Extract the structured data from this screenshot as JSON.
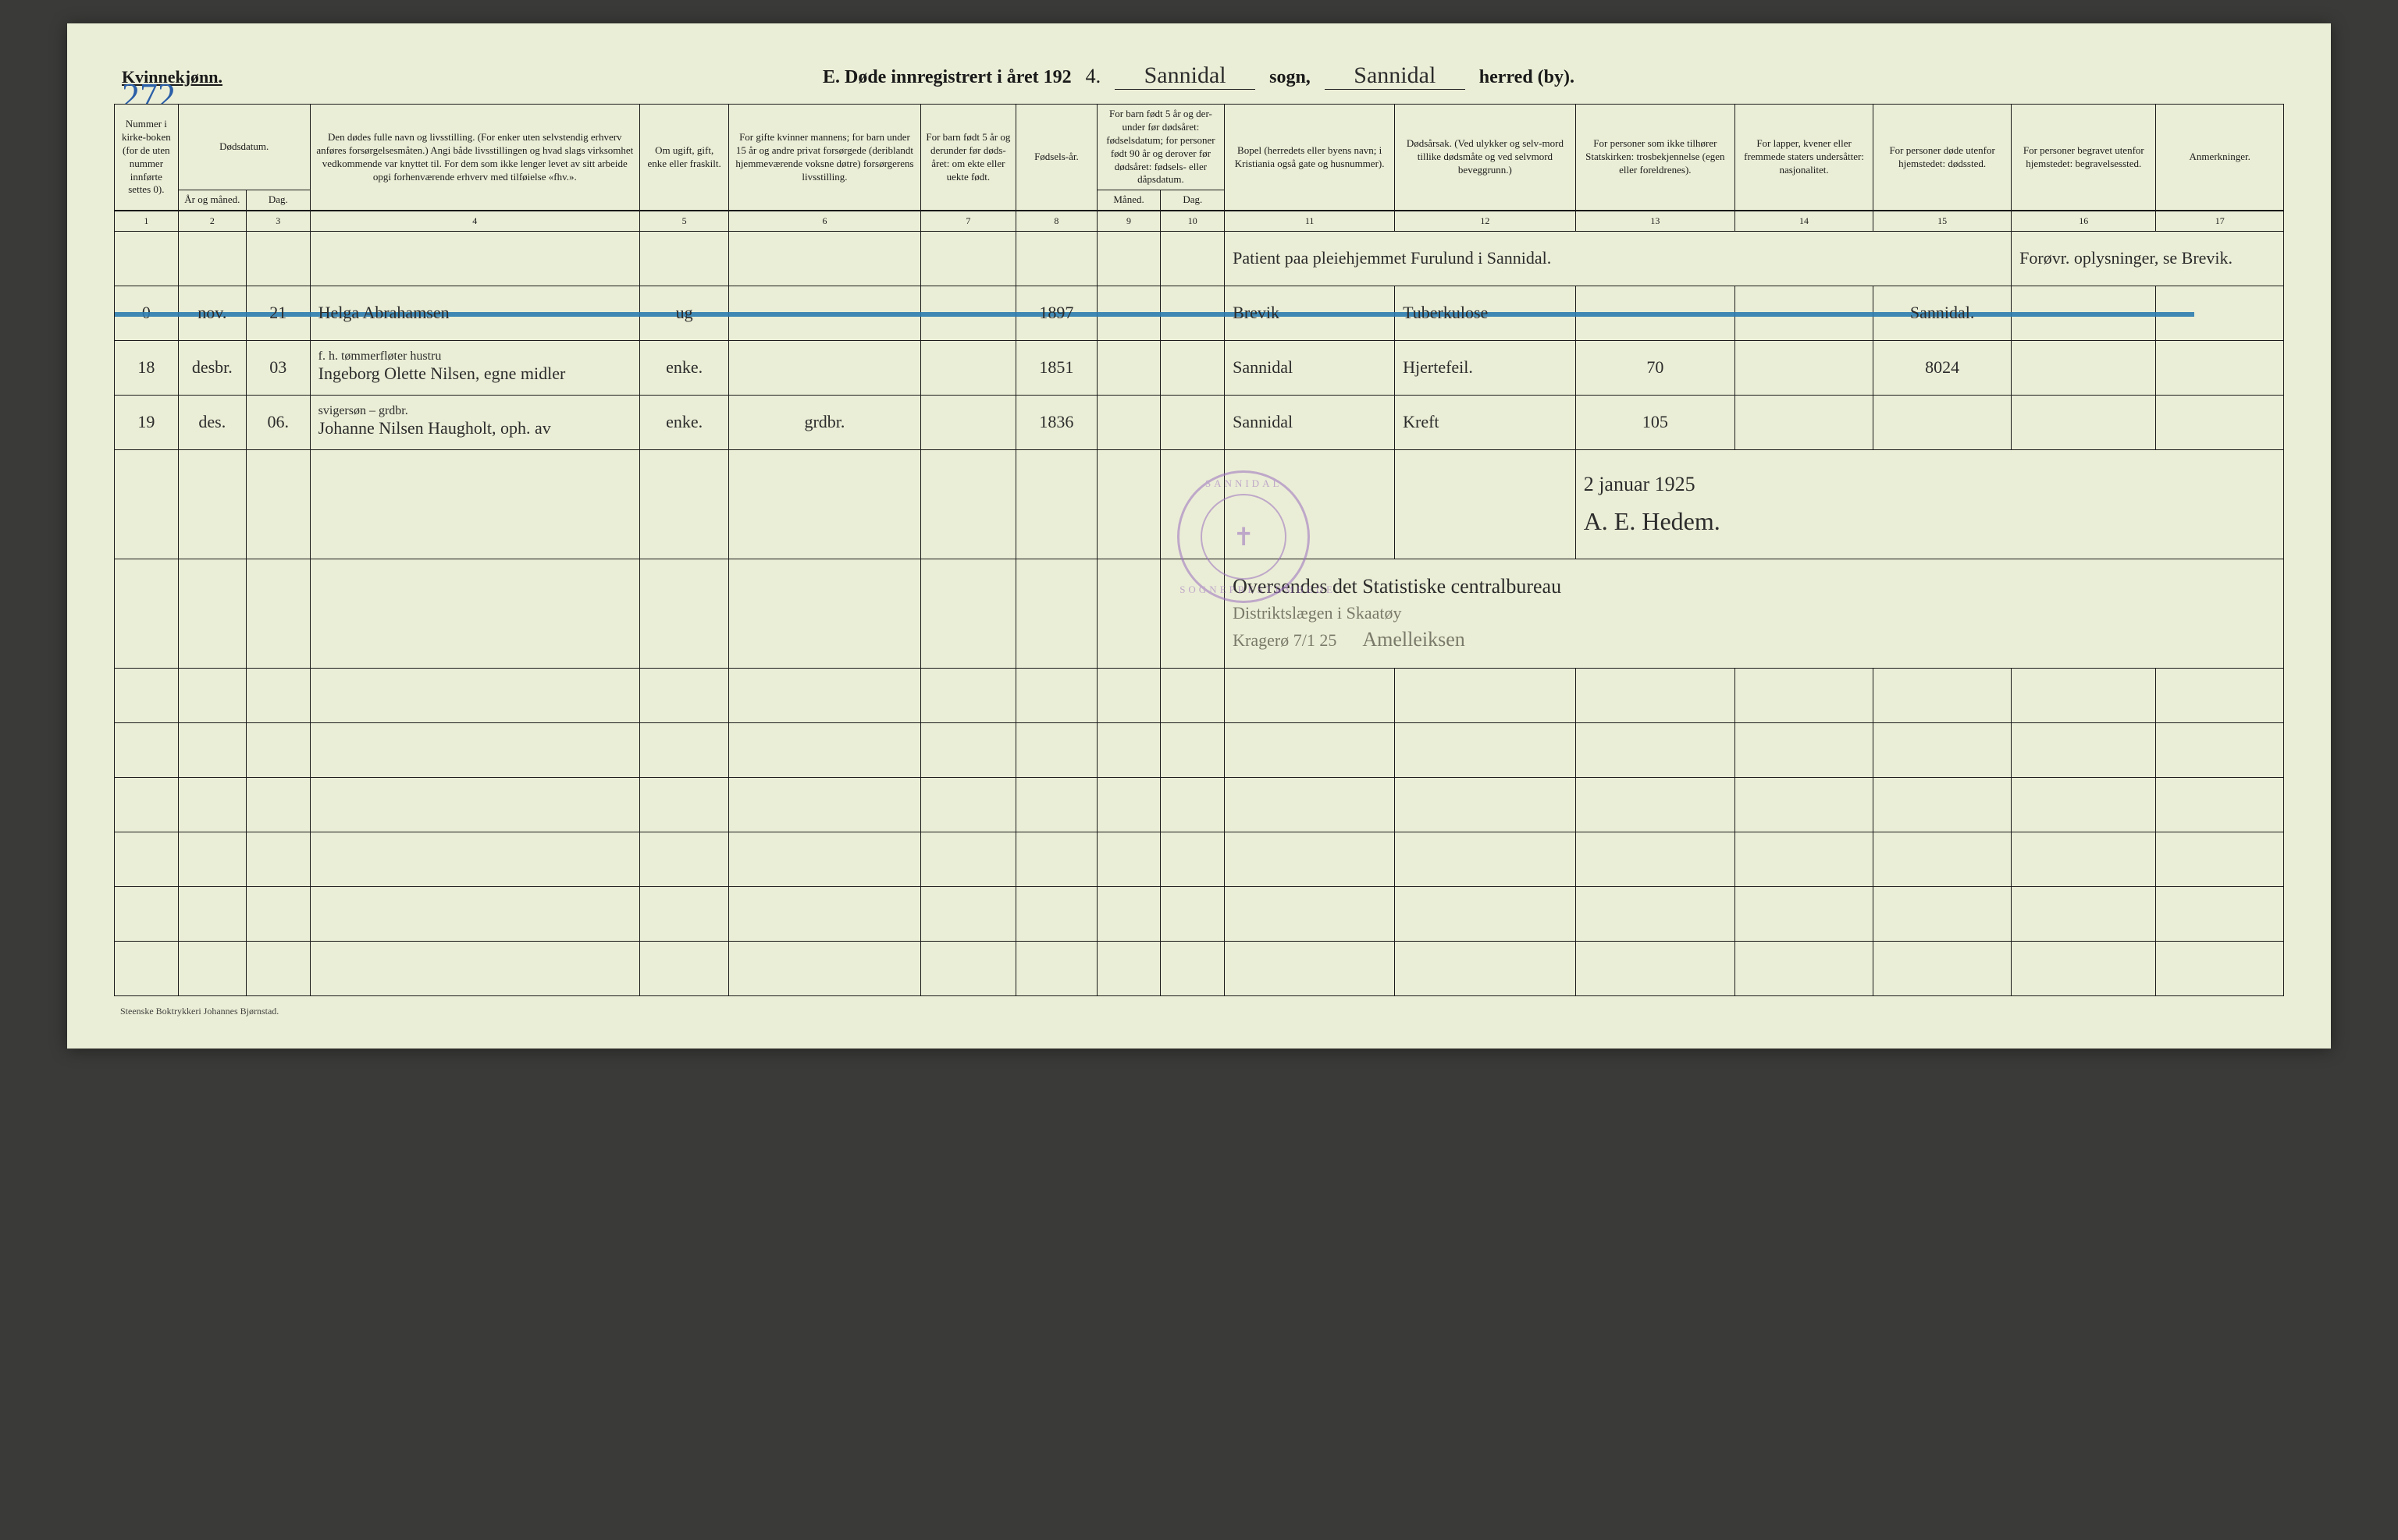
{
  "page": {
    "gender_label": "Kvinnekjønn.",
    "page_number": "272",
    "title_prefix": "E.   Døde innregistrert i året 192",
    "year_suffix": "4.",
    "sogn_value": "Sannidal",
    "sogn_label": "sogn,",
    "herred_value": "Sannidal",
    "herred_label": "herred (by).",
    "footer": "Steenske Boktrykkeri Johannes Bjørnstad.",
    "background_color": "#ebeed6",
    "ink_color": "#1a1a1a",
    "script_color": "#2c2c2c",
    "pencil_color": "#7a7a6a",
    "blue_color": "#2d7cb0",
    "stamp_color": "#9a6fc0",
    "page_number_color": "#2b5fa8"
  },
  "columns": {
    "widths_pct": [
      3.0,
      3.2,
      3.0,
      15.5,
      4.2,
      9.0,
      4.5,
      3.8,
      3.0,
      3.0,
      8.0,
      8.5,
      7.5,
      6.5,
      6.5,
      6.8,
      6.0
    ],
    "headers": [
      "Nummer i kirke-boken (for de uten nummer innførte settes 0).",
      "Dødsdatum.",
      "",
      "Den dødes fulle navn og livsstilling. (For enker uten selvstendig erhverv anføres forsørgelsesmåten.) Angi både livsstillingen og hvad slags virksomhet vedkommende var knyttet til. For dem som ikke lenger levet av sitt arbeide opgi forhenværende erhverv med tilføielse «fhv.».",
      "Om ugift, gift, enke eller fraskilt.",
      "For gifte kvinner mannens; for barn under 15 år og andre privat forsørgede (deriblandt hjemmeværende voksne døtre) forsørgerens livsstilling.",
      "For barn født 5 år og derunder før døds-året: om ekte eller uekte født.",
      "Fødsels-år.",
      "",
      "",
      "Bopel (herredets eller byens navn; i Kristiania også gate og husnummer).",
      "Dødsårsak. (Ved ulykker og selv-mord tillike dødsmåte og ved selvmord beveggrunn.)",
      "For personer som ikke tilhører Statskirken: trosbekjennelse (egen eller foreldrenes).",
      "For lapper, kvener eller fremmede staters undersåtter: nasjonalitet.",
      "For personer døde utenfor hjemstedet: dødssted.",
      "For personer begravet utenfor hjemstedet: begravelsessted.",
      "Anmerkninger."
    ],
    "sub_date": {
      "c2": "År og måned.",
      "c3": "Dag."
    },
    "sub_child": {
      "group": "For barn født 5 år og der-under før dødsåret: fødselsdatum; for personer født 90 år og derover før dødsåret: fødsels- eller dåpsdatum.",
      "c9": "Måned.",
      "c10": "Dag."
    },
    "numbers": [
      "1",
      "2",
      "3",
      "4",
      "5",
      "6",
      "7",
      "8",
      "9",
      "10",
      "11",
      "12",
      "13",
      "14",
      "15",
      "16",
      "17"
    ]
  },
  "top_note": {
    "text_left": "Patient paa pleiehjemmet Furulund i Sannidal.",
    "text_right": "Forøvr. oplysninger, se Brevik."
  },
  "rows": [
    {
      "num": "0",
      "month": "nov.",
      "day": "21",
      "name": "Helga Abrahamsen",
      "name_sub": "",
      "status": "ug",
      "provider": "",
      "birth": "1897",
      "residence": "Brevik",
      "cause": "Tuberkulose",
      "c13": "",
      "c15": "Sannidal.",
      "struck_blue": true
    },
    {
      "num": "18",
      "month": "desbr.",
      "day": "03",
      "name": "Ingeborg Olette Nilsen, egne midler",
      "name_sub": "f. h. tømmerfløter hustru",
      "status": "enke.",
      "provider": "",
      "birth": "1851",
      "residence": "Sannidal",
      "cause": "Hjertefeil.",
      "c13": "70",
      "c15": "8024",
      "struck_blue": false
    },
    {
      "num": "19",
      "month": "des.",
      "day": "06.",
      "name": "Johanne Nilsen Haugholt, oph. av",
      "name_sub": "svigersøn – grdbr.",
      "status": "enke.",
      "provider": "grdbr.",
      "birth": "1836",
      "residence": "Sannidal",
      "cause": "Kreft",
      "c13": "105",
      "c15": "",
      "struck_blue": false
    }
  ],
  "signature_block": {
    "date": "2 januar 1925",
    "signature": "A. E. Hedem."
  },
  "stamp": {
    "ring_top": "SANNIDAL",
    "ring_bottom": "SOGNEPRESTEMBEDE",
    "cross": "✝"
  },
  "lower_annotations": {
    "line1": "Oversendes det Statistiske centralbureau",
    "line2": "Distriktslægen i Skaatøy",
    "line3_left": "Kragerø 7/1 25",
    "line3_right": "Amelleiksen"
  },
  "empty_row_count": 6
}
